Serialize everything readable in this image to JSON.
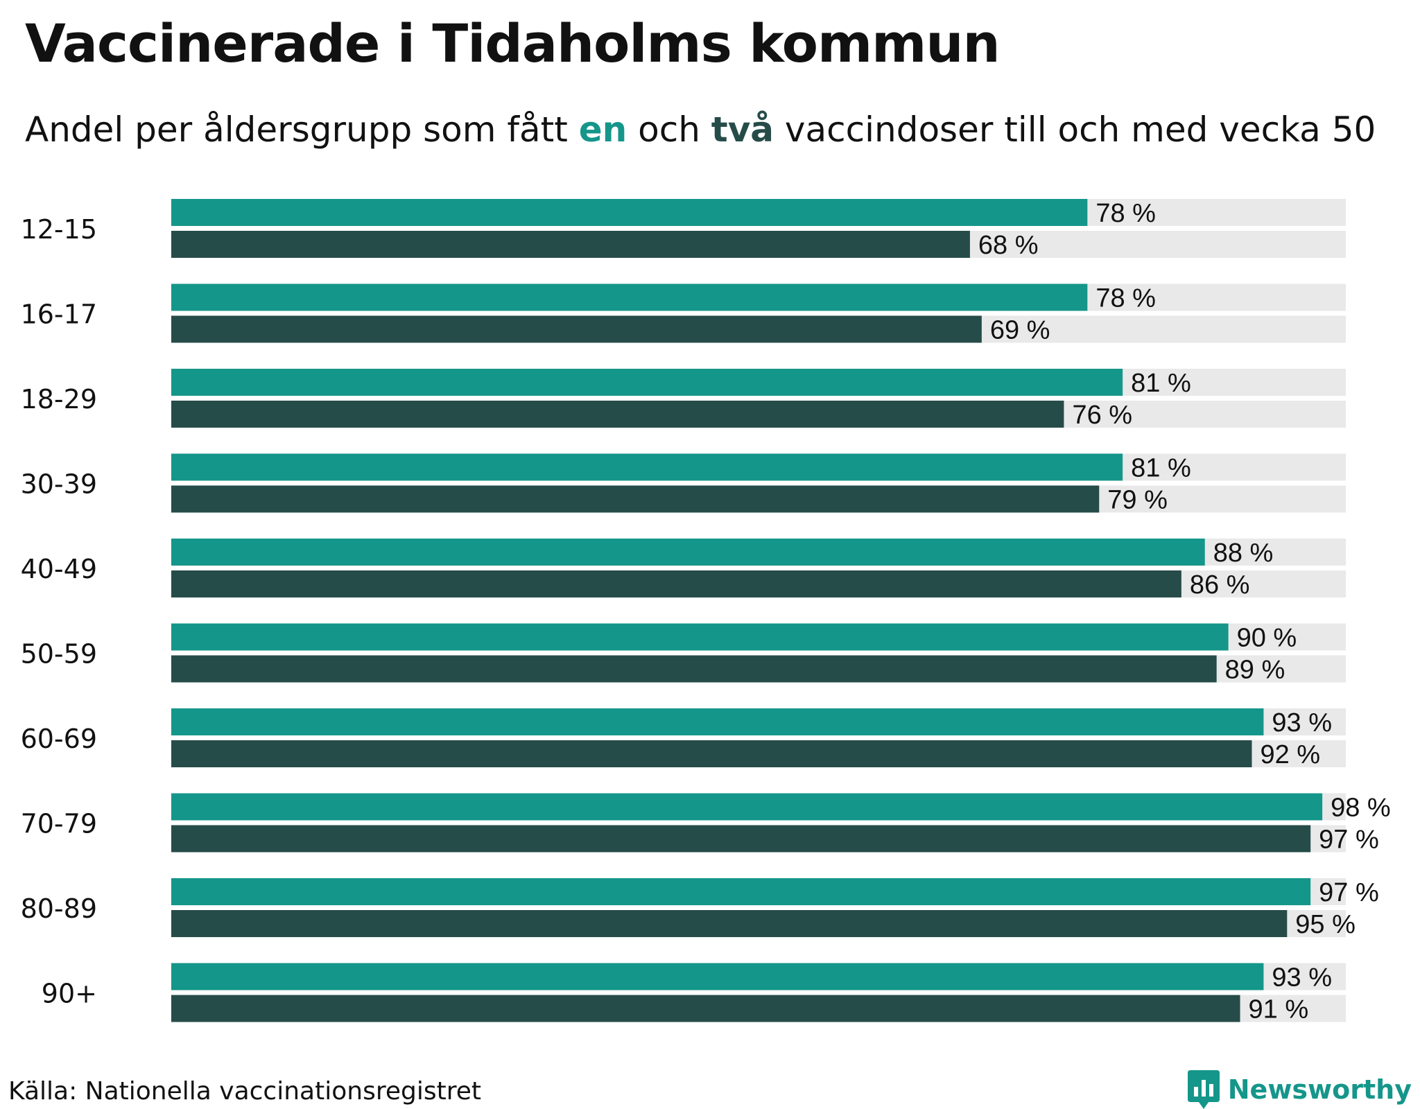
{
  "header": {
    "title": "Vaccinerade i Tidaholms kommun",
    "subtitle_part1": "Andel per åldersgrupp som fått ",
    "subtitle_en": "en",
    "subtitle_part2": " och ",
    "subtitle_tva": "två",
    "subtitle_part3": " vaccindoser till och med vecka 50"
  },
  "footer": {
    "source": "Källa: Nationella vaccinationsregistret",
    "brand": "Newsworthy",
    "brand_icon": "bar-chart-logo-icon"
  },
  "colors": {
    "dose1": "#15968a",
    "dose2": "#264c49",
    "track": "#e9e9e9",
    "brand": "#15968a"
  },
  "chart_data": {
    "type": "bar",
    "orientation": "horizontal",
    "title": "Vaccinerade i Tidaholms kommun",
    "subtitle": "Andel per åldersgrupp som fått en och två vaccindoser till och med vecka 50",
    "categories": [
      "12-15",
      "16-17",
      "18-29",
      "30-39",
      "40-49",
      "50-59",
      "60-69",
      "70-79",
      "80-89",
      "90+"
    ],
    "series": [
      {
        "name": "en",
        "values": [
          78,
          78,
          81,
          81,
          88,
          90,
          93,
          98,
          97,
          93
        ]
      },
      {
        "name": "två",
        "values": [
          68,
          69,
          76,
          79,
          86,
          89,
          92,
          97,
          95,
          91
        ]
      }
    ],
    "value_suffix": " %",
    "xlim": [
      0,
      100
    ],
    "xlabel": "",
    "ylabel": "",
    "grid": false
  }
}
